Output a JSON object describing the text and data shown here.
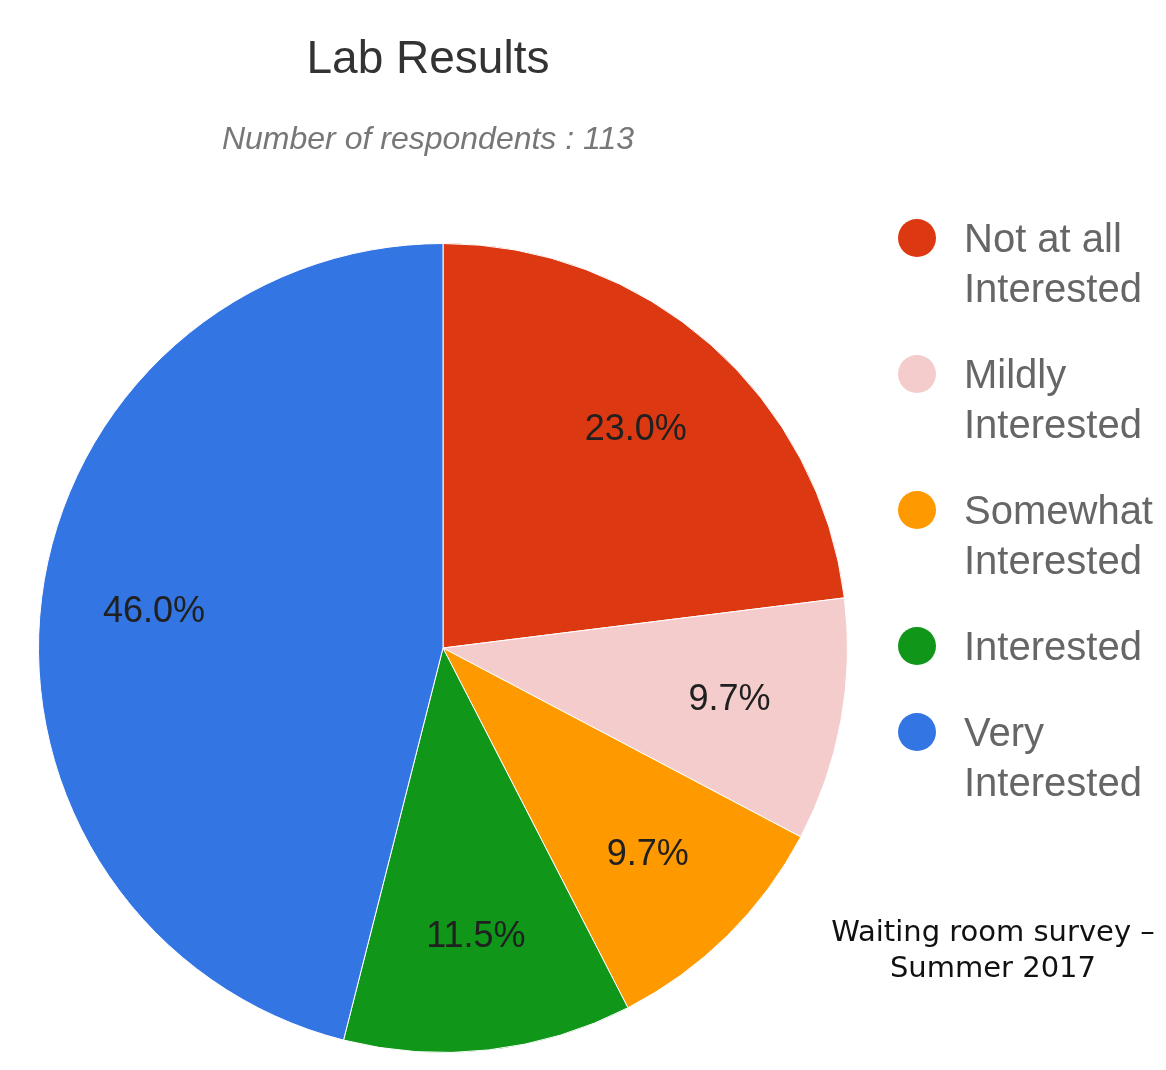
{
  "chart_data": {
    "type": "pie",
    "title": "Lab Results",
    "subtitle": "Number of respondents : 113",
    "categories": [
      "Not at all Interested",
      "Mildly Interested",
      "Somewhat Interested",
      "Interested",
      "Very Interested"
    ],
    "values": [
      23.0,
      9.7,
      9.7,
      11.5,
      46.0
    ],
    "value_labels": [
      "23.0%",
      "9.7%",
      "9.7%",
      "11.5%",
      "46.0%"
    ],
    "colors": [
      "#dc3912",
      "#f4cccc",
      "#ff9900",
      "#109618",
      "#3275e3"
    ],
    "legend": "right",
    "annotations": [
      "Waiting room survey – Summer 2017"
    ]
  }
}
